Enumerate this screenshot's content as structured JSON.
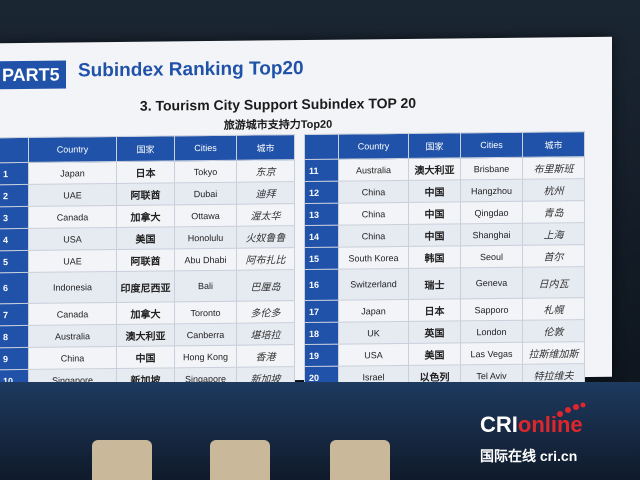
{
  "slide": {
    "part_tag": "PART5",
    "title": "Subindex Ranking  Top20",
    "subtitle": "3. Tourism City Support Subindex TOP 20",
    "subtitle_cn": "旅游城市支持力Top20",
    "headers": {
      "country": "Country",
      "country_cn": "国家",
      "cities": "Cities",
      "city_cn": "城市"
    }
  },
  "table_left": [
    {
      "rank": "1",
      "country": "Japan",
      "country_cn": "日本",
      "city": "Tokyo",
      "city_cn": "东京"
    },
    {
      "rank": "2",
      "country": "UAE",
      "country_cn": "阿联酋",
      "city": "Dubai",
      "city_cn": "迪拜"
    },
    {
      "rank": "3",
      "country": "Canada",
      "country_cn": "加拿大",
      "city": "Ottawa",
      "city_cn": "渥太华"
    },
    {
      "rank": "4",
      "country": "USA",
      "country_cn": "美国",
      "city": "Honolulu",
      "city_cn": "火奴鲁鲁"
    },
    {
      "rank": "5",
      "country": "UAE",
      "country_cn": "阿联酋",
      "city": "Abu Dhabi",
      "city_cn": "阿布扎比"
    },
    {
      "rank": "6",
      "country": "Indonesia",
      "country_cn": "印度尼西亚",
      "city": "Bali",
      "city_cn": "巴厘岛"
    },
    {
      "rank": "7",
      "country": "Canada",
      "country_cn": "加拿大",
      "city": "Toronto",
      "city_cn": "多伦多"
    },
    {
      "rank": "8",
      "country": "Australia",
      "country_cn": "澳大利亚",
      "city": "Canberra",
      "city_cn": "堪培拉"
    },
    {
      "rank": "9",
      "country": "China",
      "country_cn": "中国",
      "city": "Hong Kong",
      "city_cn": "香港"
    },
    {
      "rank": "10",
      "country": "Singapore",
      "country_cn": "新加坡",
      "city": "Singapore",
      "city_cn": "新加坡"
    }
  ],
  "table_right": [
    {
      "rank": "11",
      "country": "Australia",
      "country_cn": "澳大利亚",
      "city": "Brisbane",
      "city_cn": "布里斯班"
    },
    {
      "rank": "12",
      "country": "China",
      "country_cn": "中国",
      "city": "Hangzhou",
      "city_cn": "杭州"
    },
    {
      "rank": "13",
      "country": "China",
      "country_cn": "中国",
      "city": "Qingdao",
      "city_cn": "青岛"
    },
    {
      "rank": "14",
      "country": "China",
      "country_cn": "中国",
      "city": "Shanghai",
      "city_cn": "上海"
    },
    {
      "rank": "15",
      "country": "South Korea",
      "country_cn": "韩国",
      "city": "Seoul",
      "city_cn": "首尔"
    },
    {
      "rank": "16",
      "country": "Switzerland",
      "country_cn": "瑞士",
      "city": "Geneva",
      "city_cn": "日内瓦"
    },
    {
      "rank": "17",
      "country": "Japan",
      "country_cn": "日本",
      "city": "Sapporo",
      "city_cn": "札幌"
    },
    {
      "rank": "18",
      "country": "UK",
      "country_cn": "英国",
      "city": "London",
      "city_cn": "伦敦"
    },
    {
      "rank": "19",
      "country": "USA",
      "country_cn": "美国",
      "city": "Las Vegas",
      "city_cn": "拉斯维加斯"
    },
    {
      "rank": "20",
      "country": "Israel",
      "country_cn": "以色列",
      "city": "Tel Aviv",
      "city_cn": "特拉维夫"
    }
  ],
  "watermark": {
    "brand_a": "CRI",
    "brand_b": "online",
    "sub": "国际在线 cri.cn"
  },
  "colors": {
    "accent": "#1f52a8",
    "logo_red": "#e0262d"
  }
}
